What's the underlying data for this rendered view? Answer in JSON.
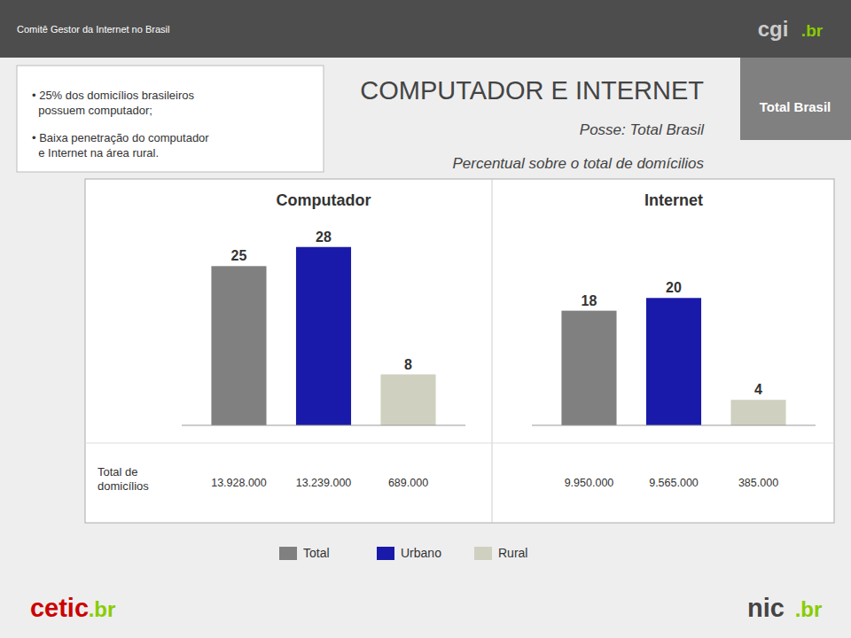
{
  "page": {
    "header_text": "Comitê Gestor da Internet no Brasil",
    "title": "COMPUTADOR E INTERNET",
    "subtitles": [
      "Posse: Total Brasil",
      "Percentual sobre o total de domícilios"
    ],
    "header_label": "Total Brasil",
    "bullets": [
      "• 25% dos domicílios brasileiros\n  possuem computador;",
      "• Baixa penetração do computador\n  e Internet na área rural."
    ],
    "row_label": "Total de\ndomicílios",
    "logos": [
      {
        "text": "cgi",
        "color": "#cccccc"
      },
      {
        "text": ".br",
        "color": "#88cc00"
      },
      {
        "text": "cetic",
        "color": "#cc0000"
      },
      {
        "text": ".br",
        "color": "#88cc00"
      },
      {
        "text": "nic",
        "color": "#444444"
      },
      {
        "text": ".br",
        "color": "#88cc00"
      }
    ]
  },
  "chart_data": [
    {
      "type": "bar",
      "title": "Computador",
      "categories": [
        "Total",
        "Urbano",
        "Rural"
      ],
      "values": [
        25,
        28,
        8
      ],
      "colors": [
        "#808080",
        "#1a1aaa",
        "#d0d0c0"
      ],
      "annotations": [
        "13.928.000",
        "13.239.000",
        "689.000"
      ],
      "ylim": [
        0,
        32
      ],
      "data_labels": true,
      "tick_labels": false,
      "legend": "bottom"
    },
    {
      "type": "bar",
      "title": "Internet",
      "categories": [
        "Total",
        "Urbano",
        "Rural"
      ],
      "values": [
        18,
        20,
        4
      ],
      "colors": [
        "#808080",
        "#1a1aaa",
        "#d0d0c0"
      ],
      "annotations": [
        "9.950.000",
        "9.565.000",
        "385.000"
      ],
      "ylim": [
        0,
        32
      ],
      "data_labels": true,
      "tick_labels": false
    }
  ]
}
